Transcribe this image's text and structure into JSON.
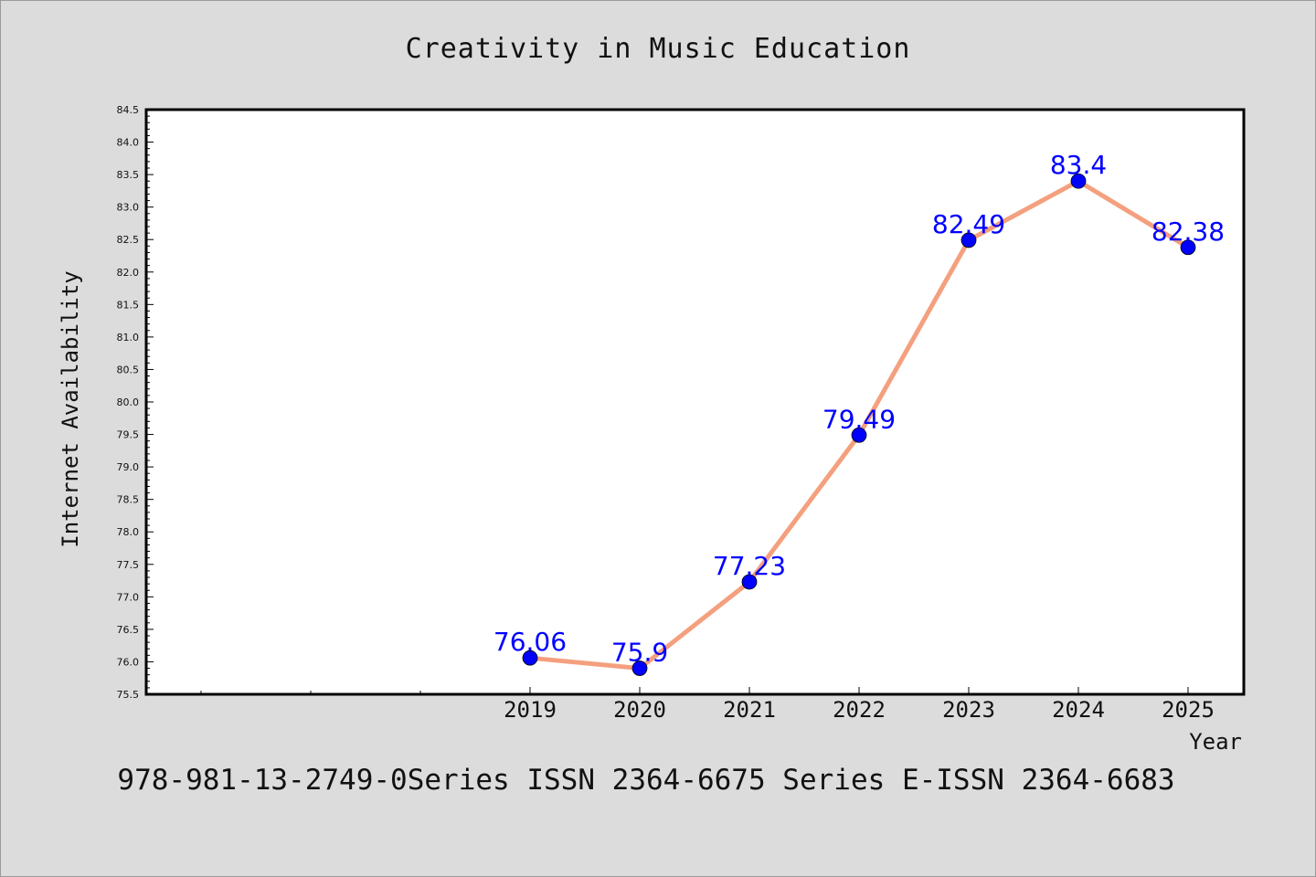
{
  "chart_data": {
    "type": "line",
    "title": "Creativity in Music Education",
    "xlabel": "Year",
    "ylabel": "Internet Availability",
    "x": [
      "2019",
      "2020",
      "2021",
      "2022",
      "2023",
      "2024",
      "2025"
    ],
    "series": [
      {
        "values": [
          76.06,
          75.9,
          77.23,
          79.49,
          82.49,
          83.4,
          82.38
        ],
        "labels": [
          "76.06",
          "75.9",
          "77.23",
          "79.49",
          "82.49",
          "83.4",
          "82.38"
        ]
      }
    ],
    "ylim": [
      75.5,
      84.5
    ],
    "ytick_step": 0.5,
    "yticks": [
      "75.5",
      "76.0",
      "76.5",
      "77.0",
      "77.5",
      "78.0",
      "78.5",
      "79.0",
      "79.5",
      "80.0",
      "80.5",
      "81.0",
      "81.5",
      "82.0",
      "82.5",
      "83.0",
      "83.5",
      "84.0",
      "84.5"
    ],
    "grid": false,
    "colors": {
      "line": "#f4a07e",
      "marker": "#0000ff",
      "data_label": "#0000ff",
      "background": "#dcdcdc",
      "plot_background": "#ffffff"
    }
  },
  "footer": {
    "text": "978-981-13-2749-0Series ISSN 2364-6675 Series E-ISSN 2364-6683"
  }
}
